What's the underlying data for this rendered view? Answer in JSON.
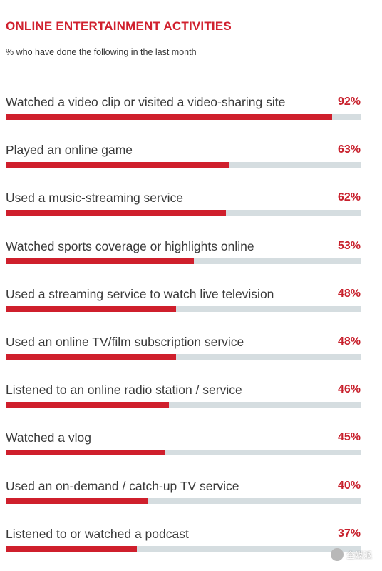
{
  "chart_data": {
    "type": "bar",
    "title": "ONLINE ENTERTAINMENT ACTIVITIES",
    "subtitle": "% who have done the following in the last month",
    "categories": [
      "Watched a video clip or visited a video-sharing site",
      "Played an online game",
      "Used a music-streaming service",
      "Watched sports coverage or highlights online",
      "Used a streaming service to watch live television",
      "Used an online TV/film subscription service",
      "Listened to an online radio station / service",
      "Watched a vlog",
      "Used an on-demand / catch-up TV service",
      "Listened to or watched a podcast"
    ],
    "values": [
      92,
      63,
      62,
      53,
      48,
      48,
      46,
      45,
      40,
      37
    ],
    "value_labels": [
      "92%",
      "63%",
      "62%",
      "53%",
      "48%",
      "48%",
      "46%",
      "45%",
      "40%",
      "37%"
    ],
    "ylim": [
      0,
      100
    ],
    "orientation": "horizontal",
    "colors": {
      "bar": "#cf1f2c",
      "track": "#d5dde0",
      "title": "#d0202e",
      "value": "#c8202c"
    }
  },
  "watermark": {
    "text": "全媒派"
  }
}
